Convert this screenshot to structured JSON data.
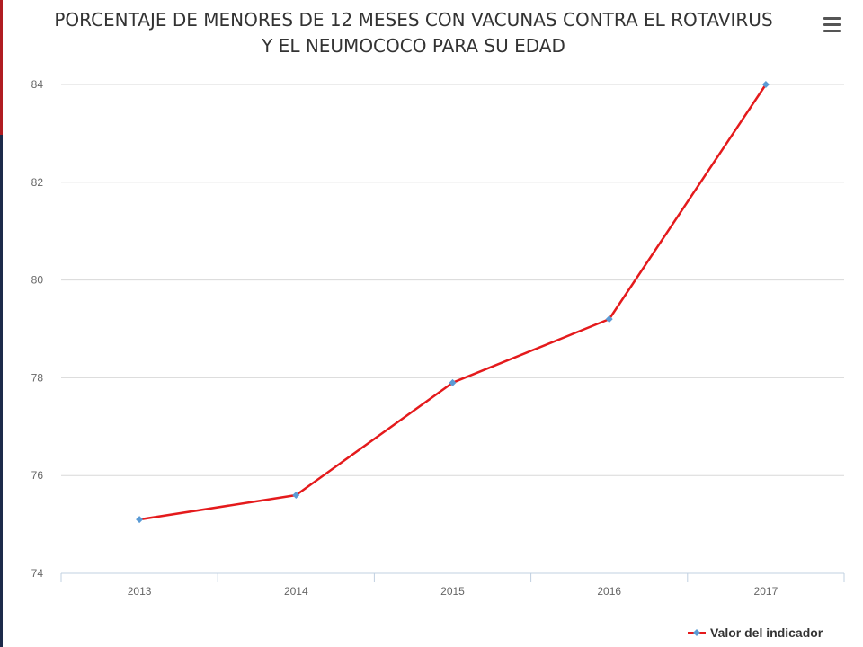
{
  "chart_data": {
    "type": "line",
    "title_lines": [
      "PORCENTAJE DE MENORES DE 12 MESES CON VACUNAS CONTRA EL ROTAVIRUS",
      "Y EL NEUMOCOCO PARA SU EDAD"
    ],
    "categories": [
      "2013",
      "2014",
      "2015",
      "2016",
      "2017"
    ],
    "series": [
      {
        "name": "Valor del indicador",
        "values": [
          75.1,
          75.6,
          77.9,
          79.2,
          84.0
        ]
      }
    ],
    "ylim": [
      74,
      84
    ],
    "yticks": [
      74,
      76,
      78,
      80,
      82,
      84
    ],
    "grid": true,
    "legend_position": "bottom-right",
    "colors": {
      "line": "#e41a1c",
      "marker": "#5b9bd5",
      "grid": "#d8d8d8",
      "axis": "#c0d0e0"
    }
  },
  "icons": {
    "menu": "hamburger-menu-icon"
  }
}
